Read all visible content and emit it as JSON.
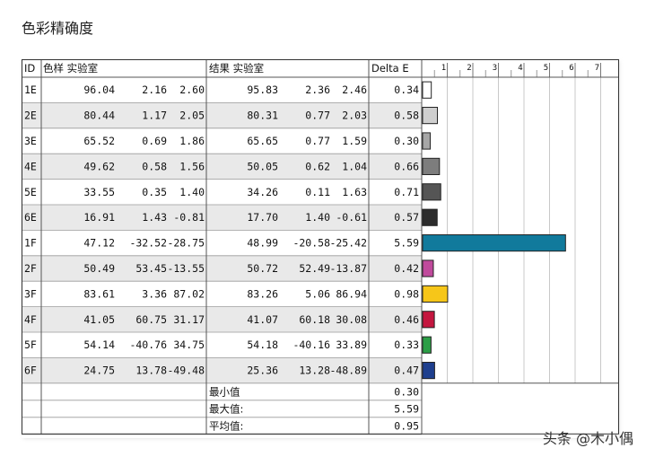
{
  "page_title": "色彩精确度",
  "watermark": "头条 @木小偶",
  "chart_data": {
    "type": "table",
    "headers": {
      "id": "ID",
      "sample": "色样 实验室",
      "result": "结果 实验室",
      "delta": "Delta E"
    },
    "axis_ticks": [
      1,
      2,
      3,
      4,
      5,
      6,
      7
    ],
    "xlim": [
      0,
      7.4
    ],
    "rows": [
      {
        "id": "1E",
        "sample": [
          "96.04",
          "2.16",
          "2.60"
        ],
        "result": [
          "95.83",
          "2.36",
          "2.46"
        ],
        "delta": "0.34",
        "value": 0.34,
        "color": "#ffffff"
      },
      {
        "id": "2E",
        "sample": [
          "80.44",
          "1.17",
          "2.05"
        ],
        "result": [
          "80.31",
          "0.77",
          "2.03"
        ],
        "delta": "0.58",
        "value": 0.58,
        "color": "#cfcfcf"
      },
      {
        "id": "3E",
        "sample": [
          "65.52",
          "0.69",
          "1.86"
        ],
        "result": [
          "65.65",
          "0.77",
          "1.59"
        ],
        "delta": "0.30",
        "value": 0.3,
        "color": "#a6a6a6"
      },
      {
        "id": "4E",
        "sample": [
          "49.62",
          "0.58",
          "1.56"
        ],
        "result": [
          "50.05",
          "0.62",
          "1.04"
        ],
        "delta": "0.66",
        "value": 0.66,
        "color": "#7d7d7d"
      },
      {
        "id": "5E",
        "sample": [
          "33.55",
          "0.35",
          "1.40"
        ],
        "result": [
          "34.26",
          "0.11",
          "1.63"
        ],
        "delta": "0.71",
        "value": 0.71,
        "color": "#555555"
      },
      {
        "id": "6E",
        "sample": [
          "16.91",
          "1.43",
          "-0.81"
        ],
        "result": [
          "17.70",
          "1.40",
          "-0.61"
        ],
        "delta": "0.57",
        "value": 0.57,
        "color": "#2c2c2c"
      },
      {
        "id": "1F",
        "sample": [
          "47.12",
          "-32.52",
          "-28.75"
        ],
        "result": [
          "48.99",
          "-20.58",
          "-25.42"
        ],
        "delta": "5.59",
        "value": 5.59,
        "color": "#117a9c"
      },
      {
        "id": "2F",
        "sample": [
          "50.49",
          "53.45",
          "-13.55"
        ],
        "result": [
          "50.72",
          "52.49",
          "-13.87"
        ],
        "delta": "0.42",
        "value": 0.42,
        "color": "#c04a9c"
      },
      {
        "id": "3F",
        "sample": [
          "83.61",
          "3.36",
          "87.02"
        ],
        "result": [
          "83.26",
          "5.06",
          "86.94"
        ],
        "delta": "0.98",
        "value": 0.98,
        "color": "#f6c619"
      },
      {
        "id": "4F",
        "sample": [
          "41.05",
          "60.75",
          "31.17"
        ],
        "result": [
          "41.07",
          "60.18",
          "30.08"
        ],
        "delta": "0.46",
        "value": 0.46,
        "color": "#c4163f"
      },
      {
        "id": "5F",
        "sample": [
          "54.14",
          "-40.76",
          "34.75"
        ],
        "result": [
          "54.18",
          "-40.16",
          "33.89"
        ],
        "delta": "0.33",
        "value": 0.33,
        "color": "#2b9e46"
      },
      {
        "id": "6F",
        "sample": [
          "24.75",
          "13.78",
          "-49.48"
        ],
        "result": [
          "25.36",
          "13.28",
          "-48.89"
        ],
        "delta": "0.47",
        "value": 0.47,
        "color": "#1e3f8e"
      }
    ],
    "summary": [
      {
        "label": "最小值",
        "value": "0.30"
      },
      {
        "label": "最大值:",
        "value": "5.59"
      },
      {
        "label": "平均值:",
        "value": "0.95"
      }
    ]
  }
}
